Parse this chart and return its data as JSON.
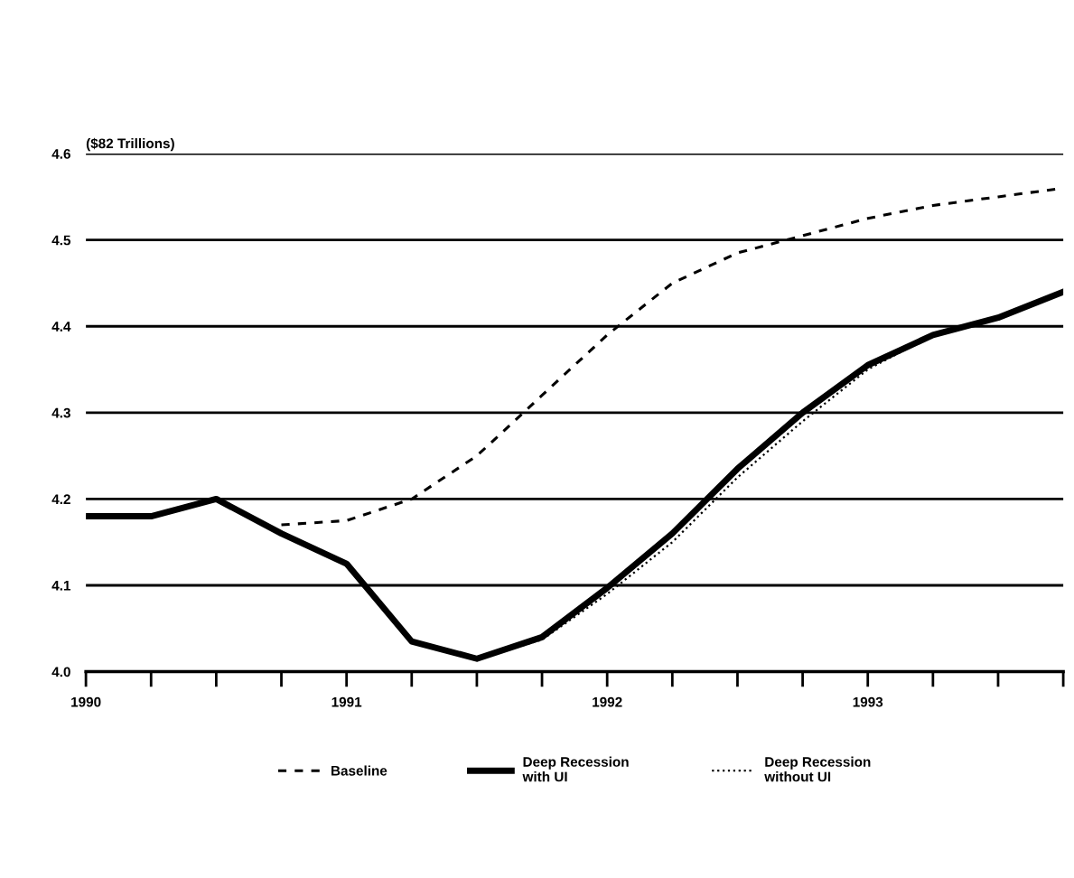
{
  "chart_data": {
    "type": "line",
    "ylabel": "($82 Trillions)",
    "x": [
      1990,
      1990.25,
      1990.5,
      1990.75,
      1991,
      1991.25,
      1991.5,
      1991.75,
      1992,
      1992.25,
      1992.5,
      1992.75,
      1993,
      1993.25,
      1993.5,
      1993.75
    ],
    "series": [
      {
        "name": "Baseline",
        "color": "#000000",
        "line_style": "dashed",
        "x": [
          1990.75,
          1991,
          1991.25,
          1991.5,
          1991.75,
          1992,
          1992.25,
          1992.5,
          1992.75,
          1993,
          1993.25,
          1993.5,
          1993.75
        ],
        "values": [
          4.17,
          4.175,
          4.2,
          4.25,
          4.32,
          4.39,
          4.45,
          4.485,
          4.505,
          4.525,
          4.54,
          4.55,
          4.56
        ]
      },
      {
        "name": "Deep Recession\nwith UI",
        "color": "#000000",
        "line_style": "solid",
        "values": [
          4.18,
          4.18,
          4.2,
          4.16,
          4.125,
          4.035,
          4.015,
          4.04,
          4.097,
          4.16,
          4.235,
          4.3,
          4.355,
          4.39,
          4.41,
          4.44
        ]
      },
      {
        "name": "Deep Recession\nwithout UI",
        "color": "#000000",
        "line_style": "dotted",
        "values": [
          4.18,
          4.18,
          4.2,
          4.16,
          4.125,
          4.035,
          4.015,
          4.037,
          4.09,
          4.15,
          4.225,
          4.29,
          4.35,
          4.39,
          4.41,
          4.44
        ]
      }
    ],
    "xlim": [
      1990,
      1993.75
    ],
    "xticks": [
      1990,
      1991,
      1992,
      1993
    ],
    "ylim": [
      4.0,
      4.6
    ],
    "yticks": [
      {
        "value": 4.0,
        "label": "4.0"
      },
      4.1,
      4.2,
      4.3,
      4.4,
      4.5,
      4.6
    ],
    "grid": "y",
    "legend": "bottom"
  }
}
